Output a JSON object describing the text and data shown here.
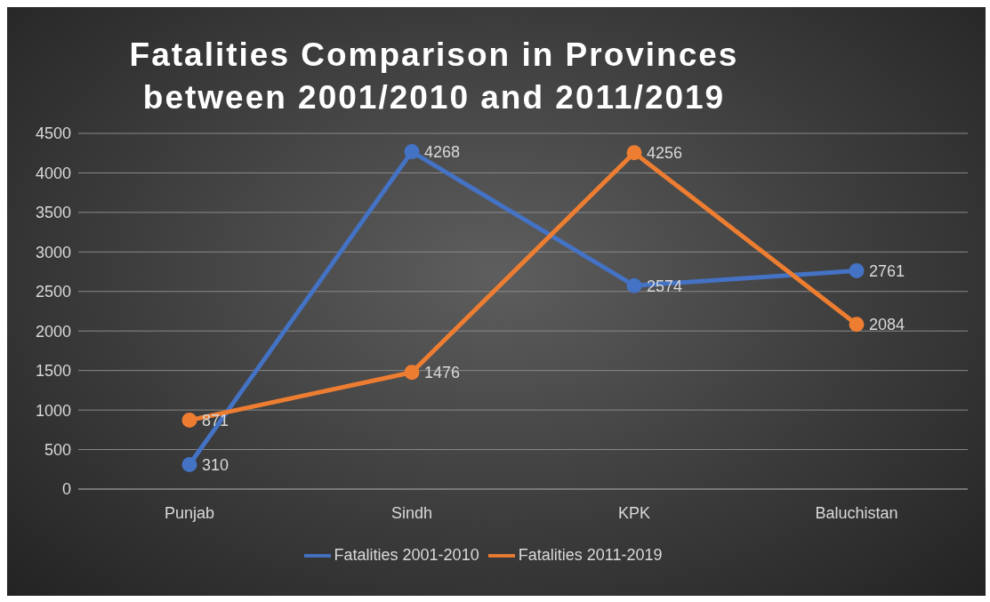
{
  "chart_data": {
    "type": "line",
    "title": "Fatalities Comparison in Provinces between 2001/2010 and 2011/2019",
    "categories": [
      "Punjab",
      "Sindh",
      "KPK",
      "Baluchistan"
    ],
    "series": [
      {
        "name": "Fatalities 2001-2010",
        "color": "#4472c4",
        "values": [
          310,
          4268,
          2574,
          2761
        ]
      },
      {
        "name": "Fatalities 2011-2019",
        "color": "#ed7d31",
        "values": [
          871,
          1476,
          4256,
          2084
        ]
      }
    ],
    "ylim": [
      0,
      4500
    ],
    "yticks": [
      0,
      500,
      1000,
      1500,
      2000,
      2500,
      3000,
      3500,
      4000,
      4500
    ],
    "grid": "y",
    "legend": "bottom",
    "marker": "circle",
    "data_labels": true
  }
}
